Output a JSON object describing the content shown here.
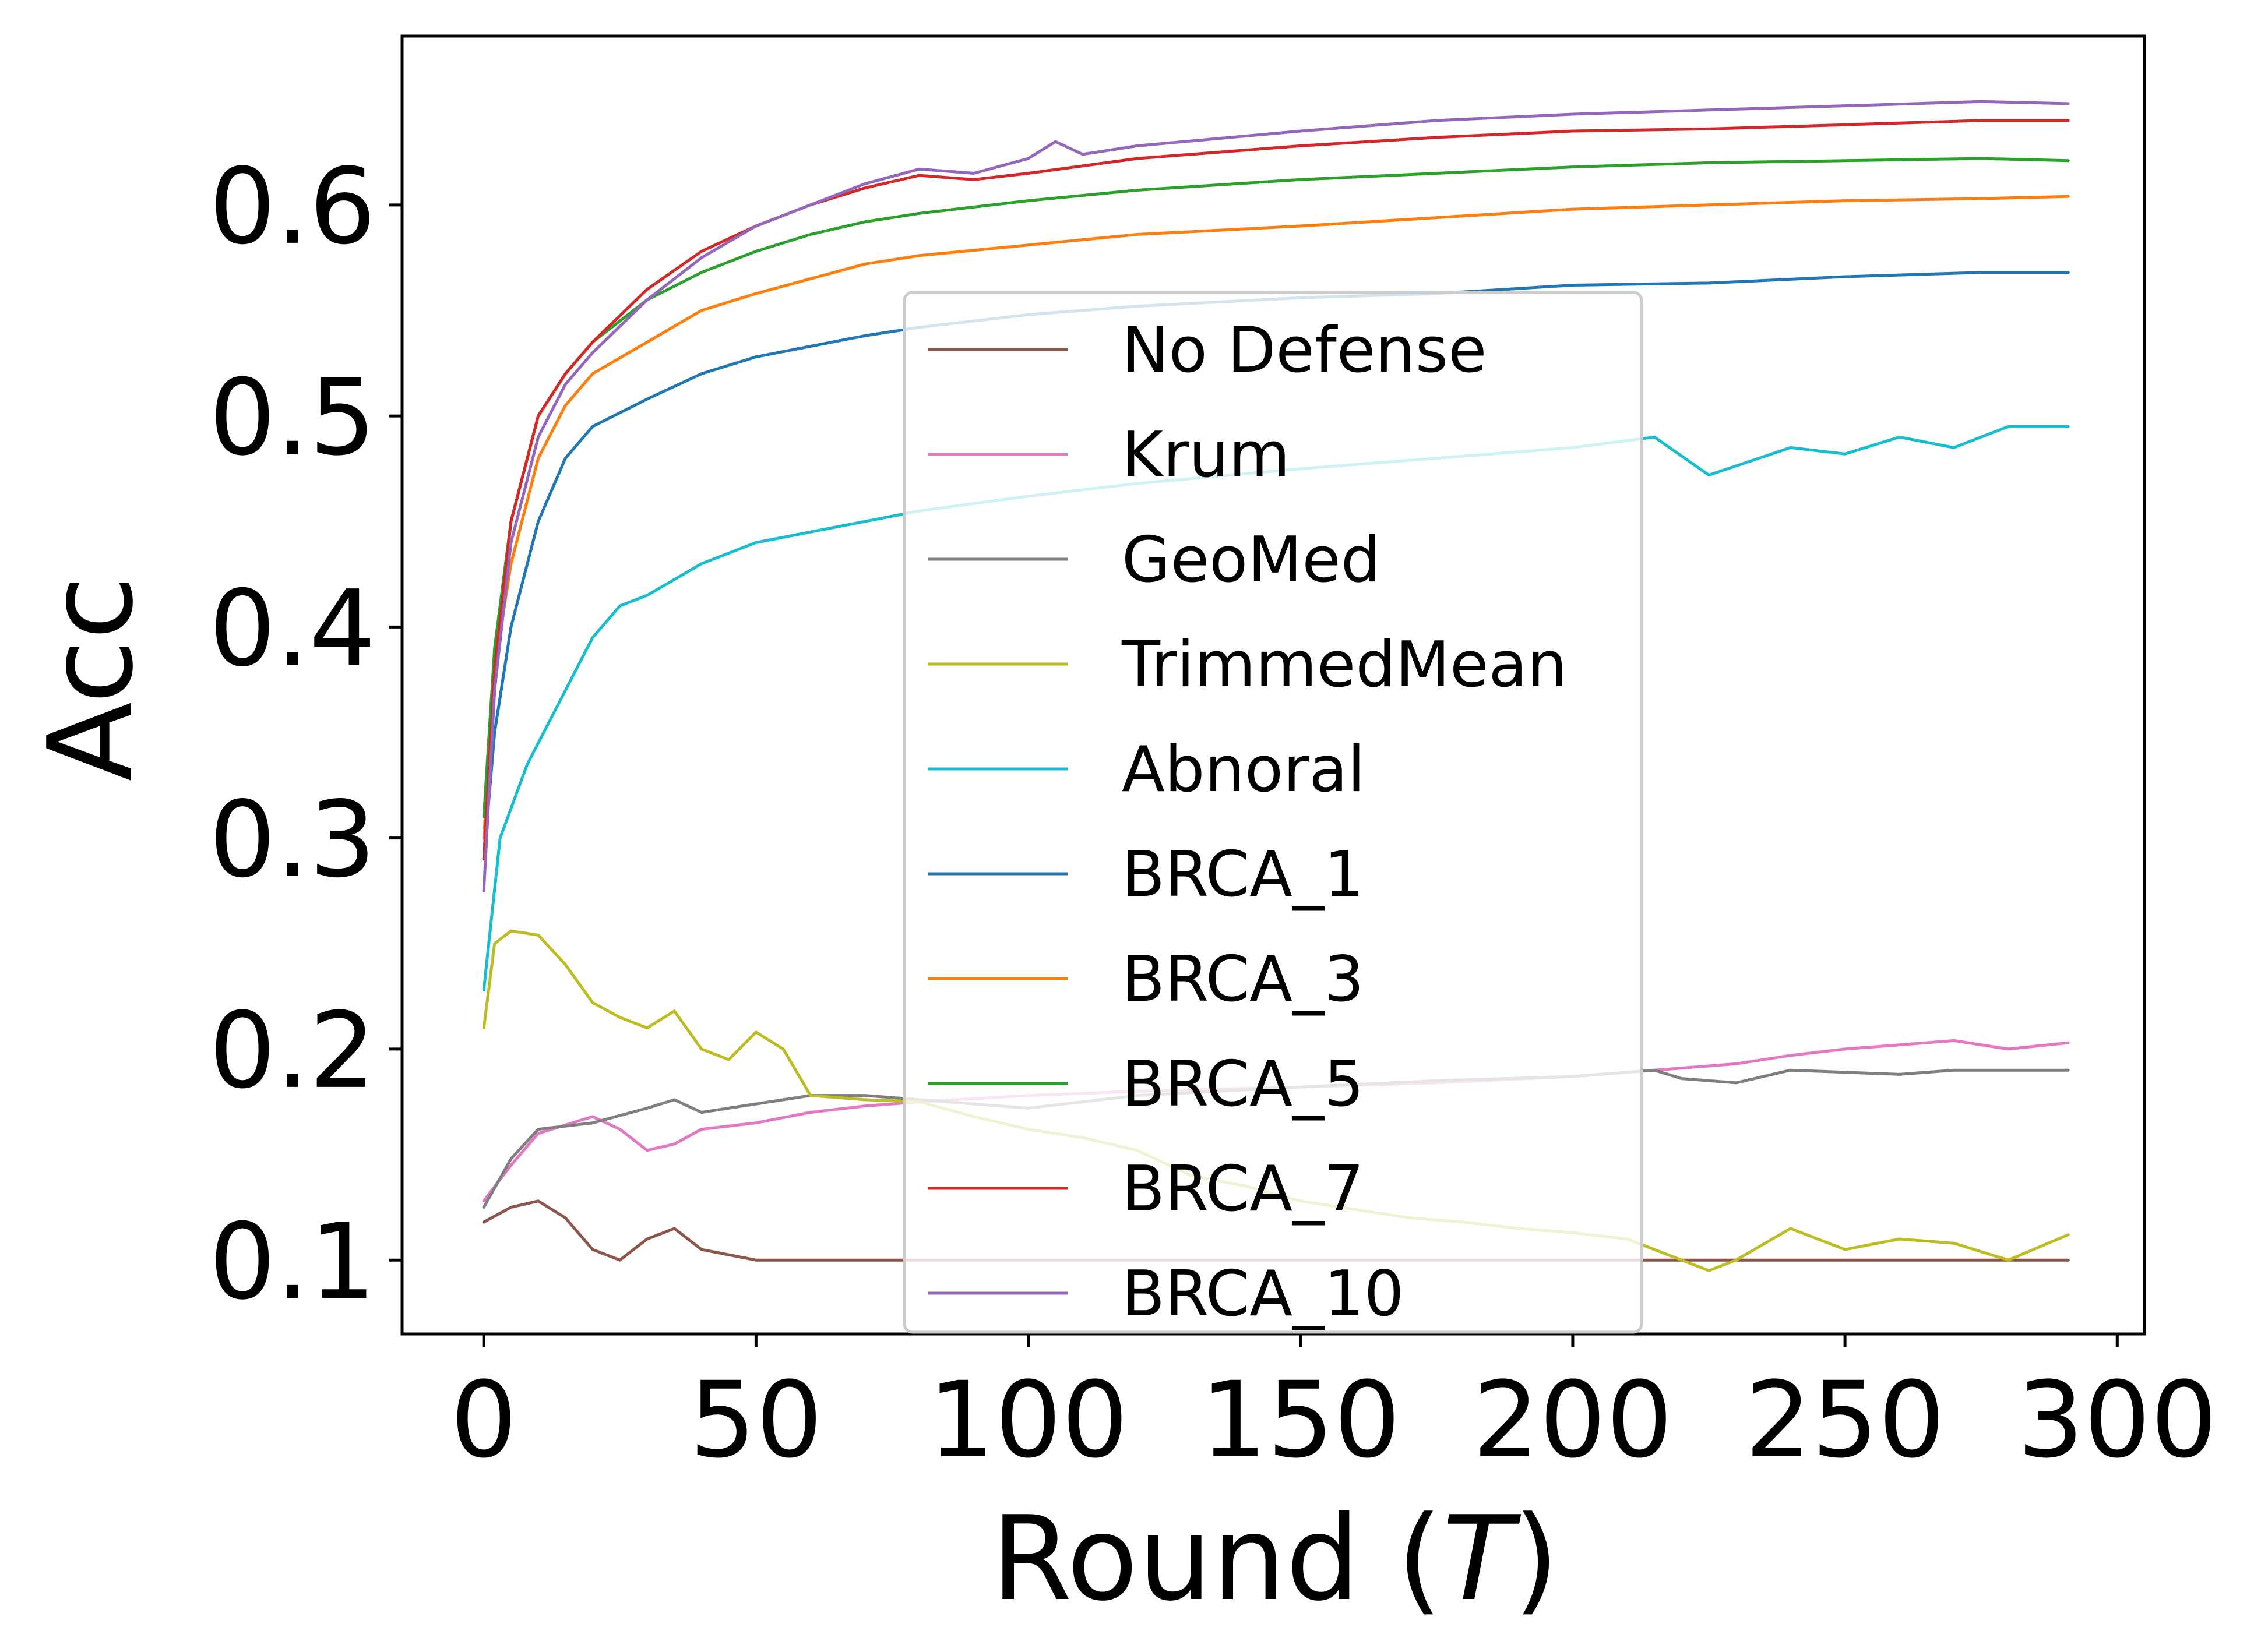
{
  "chart_data": {
    "type": "line",
    "title": "",
    "xlabel_main": "Round (",
    "xlabel_var": "T",
    "xlabel_close": ")",
    "ylabel": "Acc",
    "xlim": [
      -15,
      305
    ],
    "ylim": [
      0.065,
      0.68
    ],
    "xticks": [
      0,
      50,
      100,
      150,
      200,
      250,
      300
    ],
    "xtick_labels": [
      "0",
      "50",
      "100",
      "150",
      "200",
      "250",
      "300"
    ],
    "yticks": [
      0.1,
      0.2,
      0.3,
      0.4,
      0.5,
      0.6
    ],
    "ytick_labels": [
      "0.1",
      "0.2",
      "0.3",
      "0.4",
      "0.5",
      "0.6"
    ],
    "grid": false,
    "legend_position": "center",
    "series": [
      {
        "name": "No Defense",
        "color": "#8c564b",
        "x": [
          0,
          5,
          10,
          15,
          20,
          25,
          30,
          35,
          40,
          50,
          60,
          80,
          100,
          150,
          200,
          250,
          291
        ],
        "y": [
          0.118,
          0.125,
          0.128,
          0.12,
          0.105,
          0.1,
          0.11,
          0.115,
          0.105,
          0.1,
          0.1,
          0.1,
          0.1,
          0.1,
          0.1,
          0.1,
          0.1
        ]
      },
      {
        "name": "Krum",
        "color": "#e377c2",
        "x": [
          0,
          5,
          10,
          20,
          25,
          30,
          35,
          40,
          50,
          60,
          70,
          80,
          100,
          120,
          150,
          175,
          200,
          215,
          230,
          240,
          250,
          260,
          270,
          280,
          291
        ],
        "y": [
          0.128,
          0.145,
          0.16,
          0.168,
          0.162,
          0.152,
          0.155,
          0.162,
          0.165,
          0.17,
          0.173,
          0.175,
          0.178,
          0.18,
          0.182,
          0.184,
          0.187,
          0.19,
          0.193,
          0.197,
          0.2,
          0.202,
          0.204,
          0.2,
          0.203
        ]
      },
      {
        "name": "GeoMed",
        "color": "#7f7f7f",
        "x": [
          0,
          5,
          10,
          20,
          30,
          35,
          40,
          50,
          60,
          70,
          80,
          100,
          120,
          150,
          175,
          200,
          215,
          220,
          230,
          240,
          250,
          260,
          270,
          280,
          291
        ],
        "y": [
          0.125,
          0.148,
          0.162,
          0.165,
          0.172,
          0.176,
          0.17,
          0.174,
          0.178,
          0.178,
          0.176,
          0.172,
          0.178,
          0.182,
          0.185,
          0.187,
          0.19,
          0.186,
          0.184,
          0.19,
          0.189,
          0.188,
          0.19,
          0.19,
          0.19
        ]
      },
      {
        "name": "TrimmedMean",
        "color": "#bcbd22",
        "x": [
          0,
          2,
          5,
          10,
          15,
          20,
          25,
          30,
          35,
          40,
          45,
          50,
          55,
          60,
          70,
          80,
          90,
          100,
          110,
          120,
          130,
          140,
          150,
          160,
          170,
          180,
          190,
          200,
          210,
          220,
          225,
          230,
          240,
          250,
          260,
          270,
          280,
          291
        ],
        "y": [
          0.21,
          0.25,
          0.256,
          0.254,
          0.24,
          0.222,
          0.215,
          0.21,
          0.218,
          0.2,
          0.195,
          0.208,
          0.2,
          0.178,
          0.176,
          0.175,
          0.168,
          0.162,
          0.158,
          0.152,
          0.14,
          0.135,
          0.128,
          0.124,
          0.12,
          0.118,
          0.115,
          0.113,
          0.11,
          0.1,
          0.095,
          0.1,
          0.115,
          0.105,
          0.11,
          0.108,
          0.1,
          0.112
        ]
      },
      {
        "name": "Abnoral",
        "color": "#17becf",
        "x": [
          0,
          3,
          8,
          15,
          20,
          25,
          30,
          40,
          50,
          60,
          70,
          80,
          100,
          120,
          150,
          175,
          200,
          215,
          225,
          240,
          250,
          260,
          270,
          280,
          291
        ],
        "y": [
          0.228,
          0.3,
          0.335,
          0.37,
          0.395,
          0.41,
          0.415,
          0.43,
          0.44,
          0.445,
          0.45,
          0.455,
          0.462,
          0.468,
          0.475,
          0.48,
          0.485,
          0.49,
          0.472,
          0.485,
          0.482,
          0.49,
          0.485,
          0.495,
          0.495
        ]
      },
      {
        "name": "BRCA_1",
        "color": "#1f77b4",
        "x": [
          0,
          2,
          5,
          10,
          15,
          20,
          30,
          40,
          50,
          60,
          70,
          80,
          100,
          120,
          150,
          175,
          200,
          225,
          250,
          275,
          291
        ],
        "y": [
          0.29,
          0.35,
          0.4,
          0.45,
          0.48,
          0.495,
          0.508,
          0.52,
          0.528,
          0.533,
          0.538,
          0.542,
          0.548,
          0.552,
          0.556,
          0.558,
          0.562,
          0.563,
          0.566,
          0.568,
          0.568
        ]
      },
      {
        "name": "BRCA_3",
        "color": "#ff7f0e",
        "x": [
          0,
          2,
          5,
          10,
          15,
          20,
          30,
          40,
          50,
          60,
          70,
          80,
          100,
          120,
          150,
          175,
          200,
          225,
          250,
          275,
          291
        ],
        "y": [
          0.3,
          0.38,
          0.43,
          0.48,
          0.505,
          0.52,
          0.535,
          0.55,
          0.558,
          0.565,
          0.572,
          0.576,
          0.581,
          0.586,
          0.59,
          0.594,
          0.598,
          0.6,
          0.602,
          0.603,
          0.604
        ]
      },
      {
        "name": "BRCA_5",
        "color": "#2ca02c",
        "x": [
          0,
          2,
          5,
          10,
          15,
          20,
          30,
          40,
          50,
          60,
          70,
          80,
          100,
          120,
          150,
          175,
          200,
          225,
          250,
          275,
          291
        ],
        "y": [
          0.31,
          0.39,
          0.45,
          0.5,
          0.52,
          0.535,
          0.555,
          0.568,
          0.578,
          0.586,
          0.592,
          0.596,
          0.602,
          0.607,
          0.612,
          0.615,
          0.618,
          0.62,
          0.621,
          0.622,
          0.621
        ]
      },
      {
        "name": "BRCA_7",
        "color": "#d62728",
        "x": [
          0,
          2,
          5,
          10,
          15,
          20,
          30,
          40,
          50,
          60,
          70,
          80,
          90,
          100,
          120,
          150,
          175,
          200,
          225,
          250,
          275,
          291
        ],
        "y": [
          0.29,
          0.38,
          0.45,
          0.5,
          0.52,
          0.535,
          0.56,
          0.578,
          0.59,
          0.6,
          0.608,
          0.614,
          0.612,
          0.615,
          0.622,
          0.628,
          0.632,
          0.635,
          0.636,
          0.638,
          0.64,
          0.64
        ]
      },
      {
        "name": "BRCA_10",
        "color": "#9467bd",
        "x": [
          0,
          2,
          5,
          10,
          15,
          20,
          30,
          40,
          50,
          60,
          70,
          80,
          90,
          100,
          105,
          110,
          120,
          150,
          175,
          200,
          225,
          250,
          275,
          291
        ],
        "y": [
          0.275,
          0.37,
          0.44,
          0.49,
          0.515,
          0.53,
          0.555,
          0.575,
          0.59,
          0.6,
          0.61,
          0.617,
          0.615,
          0.622,
          0.63,
          0.624,
          0.628,
          0.635,
          0.64,
          0.643,
          0.645,
          0.647,
          0.649,
          0.648
        ]
      }
    ]
  }
}
